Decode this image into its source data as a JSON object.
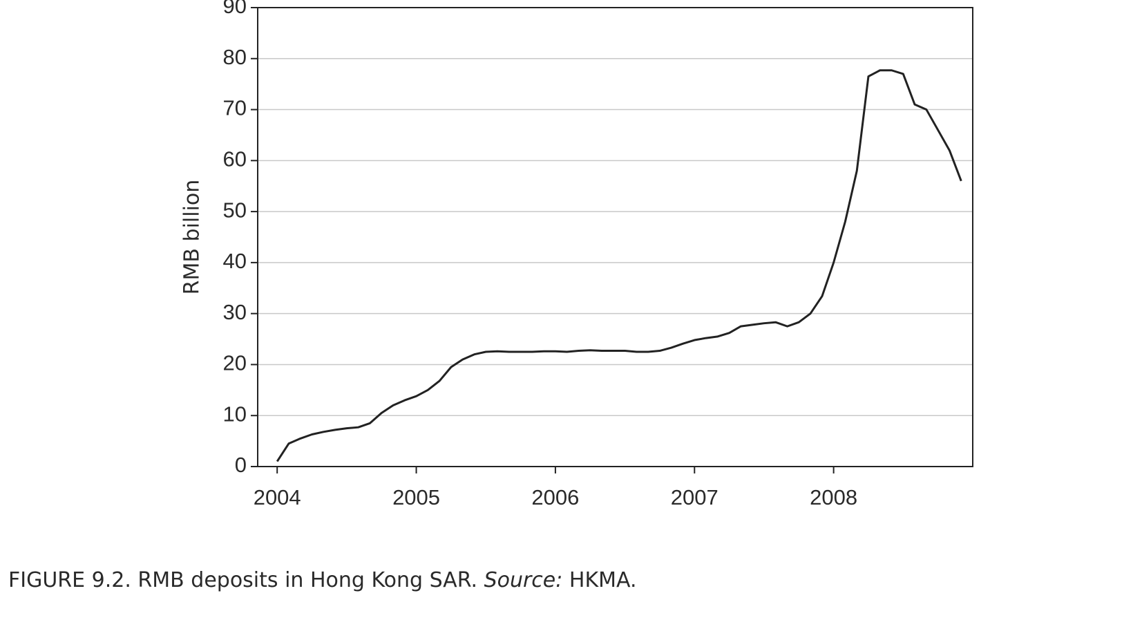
{
  "chart_data": {
    "type": "line",
    "ylabel": "RMB billion",
    "caption": "FIGURE 9.2. RMB deposits in Hong Kong SAR.",
    "source_label": "Source:",
    "source": "HKMA.",
    "x": [
      2004,
      2004.083,
      2004.167,
      2004.25,
      2004.333,
      2004.417,
      2004.5,
      2004.583,
      2004.667,
      2004.75,
      2004.833,
      2004.917,
      2005,
      2005.083,
      2005.167,
      2005.25,
      2005.333,
      2005.417,
      2005.5,
      2005.583,
      2005.667,
      2005.75,
      2005.833,
      2005.917,
      2006,
      2006.083,
      2006.167,
      2006.25,
      2006.333,
      2006.417,
      2006.5,
      2006.583,
      2006.667,
      2006.75,
      2006.833,
      2006.917,
      2007,
      2007.083,
      2007.167,
      2007.25,
      2007.333,
      2007.417,
      2007.5,
      2007.583,
      2007.667,
      2007.75,
      2007.833,
      2007.917,
      2008,
      2008.083,
      2008.167,
      2008.25,
      2008.333,
      2008.417,
      2008.5,
      2008.583,
      2008.667,
      2008.75,
      2008.833,
      2008.917
    ],
    "series": [
      {
        "color": "#222222",
        "values": [
          1,
          4.5,
          5.5,
          6.3,
          6.8,
          7.2,
          7.5,
          7.7,
          8.5,
          10.5,
          12,
          13,
          13.8,
          15,
          16.8,
          19.5,
          21,
          22,
          22.5,
          22.6,
          22.5,
          22.5,
          22.5,
          22.6,
          22.6,
          22.5,
          22.7,
          22.8,
          22.7,
          22.7,
          22.7,
          22.5,
          22.5,
          22.7,
          23.3,
          24.1,
          24.8,
          25.2,
          25.5,
          26.2,
          27.5,
          27.8,
          28.1,
          28.3,
          27.5,
          28.3,
          30,
          33.4,
          40,
          48,
          58,
          76.5,
          77.7,
          77.7,
          77,
          71,
          70,
          66,
          62,
          56
        ]
      }
    ],
    "xlim": [
      2003.86,
      2009.0
    ],
    "xticks": [
      2004,
      2005,
      2006,
      2007,
      2008
    ],
    "ylim": [
      0,
      90
    ],
    "yticks": [
      0,
      10,
      20,
      30,
      40,
      50,
      60,
      70,
      80,
      90
    ],
    "grid": true
  }
}
